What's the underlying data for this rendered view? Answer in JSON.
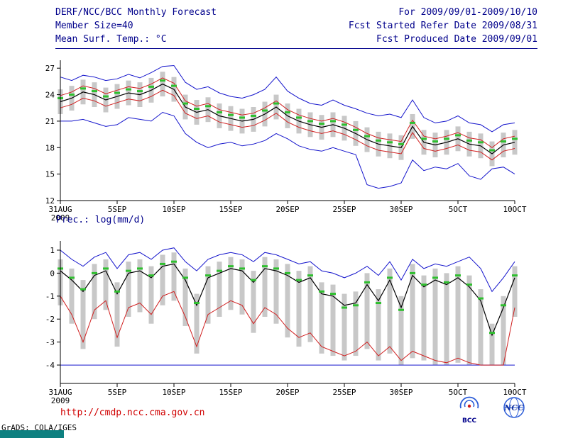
{
  "header": {
    "title": "DERF/NCC/BCC Monthly Forecast",
    "member_size": "Member Size=40",
    "variable_label": "Mean Surf. Temp.: °C",
    "valid_range": "For 2009/09/01-2009/10/10",
    "refer_date": "Fcst Started Refer Date 2009/08/31",
    "produced_date": "Fcst Produced Date 2009/09/01"
  },
  "footer": {
    "url": "http://cmdp.ncc.cma.gov.cn",
    "credit": "GrADS: COLA/IGES",
    "logo_bcc": "BCC",
    "logo_ncc": "NCC"
  },
  "colors": {
    "header_navy": "#00008b",
    "line_blue": "#1414cc",
    "line_red": "#d02020",
    "line_black": "#000000",
    "dash_green": "#2fbf2f",
    "bar_gray": "#c8c8c8",
    "url_red": "#d00000",
    "teal_strip": "#0e8080"
  },
  "chart_data": [
    {
      "type": "line",
      "title": "Mean Surf. Temp.: °C",
      "ylabel": "°C",
      "ylim": [
        12,
        27.9
      ],
      "yticks": [
        12,
        15,
        18,
        21,
        24,
        27
      ],
      "x_tick_days": [
        0,
        5,
        10,
        15,
        20,
        25,
        30,
        35,
        40
      ],
      "x_tick_labels": [
        "31AUG",
        "5SEP",
        "10SEP",
        "15SEP",
        "20SEP",
        "25SEP",
        "30SEP",
        "5OCT",
        "10OCT"
      ],
      "x_sub_label": "2009",
      "grid": false,
      "legend": "none",
      "series": [
        {
          "name": "ensemble-max",
          "color": "#1414cc",
          "width": 1,
          "values": [
            26.0,
            25.6,
            26.2,
            26.0,
            25.6,
            25.8,
            26.3,
            25.9,
            26.5,
            27.2,
            27.3,
            25.4,
            24.6,
            24.9,
            24.2,
            23.8,
            23.6,
            24.0,
            24.6,
            26.0,
            24.4,
            23.6,
            23.0,
            22.8,
            23.4,
            22.8,
            22.4,
            21.9,
            21.6,
            21.8,
            21.4,
            23.4,
            21.4,
            20.8,
            21.0,
            21.6,
            20.8,
            20.6,
            19.8,
            20.6,
            20.8
          ]
        },
        {
          "name": "ensemble-min",
          "color": "#1414cc",
          "width": 1,
          "values": [
            21.0,
            21.0,
            21.2,
            20.8,
            20.4,
            20.6,
            21.4,
            21.2,
            21.0,
            22.0,
            21.6,
            19.6,
            18.6,
            18.0,
            18.4,
            18.6,
            18.2,
            18.4,
            18.8,
            19.6,
            19.0,
            18.2,
            17.8,
            17.6,
            18.0,
            17.6,
            17.2,
            13.8,
            13.4,
            13.6,
            14.0,
            16.6,
            15.4,
            15.8,
            15.6,
            16.2,
            14.8,
            14.4,
            15.6,
            15.8,
            15.0
          ]
        },
        {
          "name": "mean-plus-std",
          "color": "#d02020",
          "width": 1,
          "values": [
            23.9,
            24.3,
            25.0,
            24.7,
            24.1,
            24.5,
            24.9,
            24.7,
            25.2,
            25.9,
            25.3,
            23.3,
            22.7,
            23.0,
            22.3,
            22.0,
            21.7,
            21.9,
            22.5,
            23.3,
            22.3,
            21.7,
            21.3,
            21.0,
            21.3,
            20.9,
            20.3,
            19.6,
            19.1,
            18.9,
            18.7,
            21.1,
            19.3,
            19.0,
            19.3,
            19.7,
            19.1,
            18.9,
            18.0,
            19.0,
            19.3
          ]
        },
        {
          "name": "mean-minus-std",
          "color": "#d02020",
          "width": 1,
          "values": [
            22.5,
            22.9,
            23.6,
            23.3,
            22.7,
            23.1,
            23.5,
            23.3,
            23.8,
            24.5,
            23.9,
            21.9,
            21.3,
            21.6,
            20.9,
            20.6,
            20.3,
            20.5,
            21.1,
            21.9,
            20.9,
            20.3,
            19.9,
            19.6,
            19.9,
            19.5,
            18.9,
            18.2,
            17.7,
            17.5,
            17.3,
            19.7,
            17.9,
            17.6,
            17.9,
            18.3,
            17.7,
            17.5,
            16.6,
            17.6,
            17.9
          ]
        },
        {
          "name": "ensemble-mean",
          "color": "#000000",
          "width": 1.2,
          "values": [
            23.2,
            23.6,
            24.3,
            24.0,
            23.4,
            23.8,
            24.2,
            24.0,
            24.5,
            25.2,
            24.6,
            22.6,
            22.0,
            22.3,
            21.6,
            21.3,
            21.0,
            21.2,
            21.8,
            22.6,
            21.6,
            21.0,
            20.6,
            20.3,
            20.6,
            20.2,
            19.6,
            18.9,
            18.4,
            18.2,
            18.0,
            20.4,
            18.6,
            18.3,
            18.6,
            19.0,
            18.4,
            18.2,
            17.3,
            18.3,
            18.6
          ]
        }
      ],
      "dashes": {
        "name": "ensemble-median",
        "color": "#2fbf2f",
        "values": [
          23.6,
          24.0,
          24.7,
          24.4,
          23.8,
          24.2,
          24.6,
          24.4,
          24.9,
          25.6,
          25.0,
          23.0,
          22.4,
          22.7,
          22.0,
          21.7,
          21.4,
          21.6,
          22.2,
          23.0,
          22.0,
          21.4,
          21.0,
          20.7,
          21.0,
          20.6,
          20.0,
          19.3,
          18.8,
          18.6,
          18.4,
          20.8,
          19.0,
          18.7,
          19.0,
          19.4,
          18.8,
          18.6,
          17.7,
          18.7,
          19.0
        ]
      },
      "bars": {
        "color": "#c8c8c8",
        "low": [
          21.8,
          22.2,
          22.9,
          22.6,
          22.0,
          22.4,
          22.8,
          22.6,
          23.1,
          23.8,
          23.2,
          21.2,
          20.6,
          20.9,
          20.2,
          19.9,
          19.6,
          19.8,
          20.4,
          21.2,
          20.2,
          19.6,
          19.2,
          18.9,
          19.2,
          18.8,
          18.2,
          17.5,
          17.0,
          16.8,
          16.6,
          19.0,
          17.2,
          16.9,
          17.2,
          17.6,
          17.0,
          16.8,
          15.9,
          16.9,
          17.2
        ],
        "high": [
          24.6,
          25.0,
          25.7,
          25.4,
          24.8,
          25.2,
          25.6,
          25.4,
          25.9,
          26.6,
          26.0,
          24.0,
          23.4,
          23.7,
          23.0,
          22.7,
          22.4,
          22.6,
          23.2,
          24.0,
          23.0,
          22.4,
          22.0,
          21.7,
          22.0,
          21.6,
          21.0,
          20.3,
          19.8,
          19.6,
          19.4,
          21.8,
          20.0,
          19.7,
          20.0,
          20.4,
          19.8,
          19.6,
          18.7,
          19.7,
          20.0
        ]
      }
    },
    {
      "type": "line",
      "title": "Prec.: log(mm/d)",
      "ylabel": "log(mm/d)",
      "ylim": [
        -4.8,
        1.4
      ],
      "yticks": [
        1,
        0,
        -1,
        -2,
        -3,
        -4
      ],
      "x_tick_days": [
        0,
        5,
        10,
        15,
        20,
        25,
        30,
        35,
        40
      ],
      "x_tick_labels": [
        "31AUG",
        "5SEP",
        "10SEP",
        "15SEP",
        "20SEP",
        "25SEP",
        "30SEP",
        "5OCT",
        "10OCT"
      ],
      "x_sub_label": "2009",
      "grid": false,
      "legend": "none",
      "series": [
        {
          "name": "ensemble-max",
          "color": "#1414cc",
          "width": 1,
          "values": [
            1.0,
            0.6,
            0.3,
            0.7,
            0.9,
            0.2,
            0.8,
            0.9,
            0.6,
            1.0,
            1.1,
            0.5,
            0.1,
            0.6,
            0.8,
            0.9,
            0.8,
            0.5,
            0.9,
            0.8,
            0.6,
            0.4,
            0.5,
            0.1,
            0.0,
            -0.2,
            0.0,
            0.3,
            -0.1,
            0.5,
            -0.3,
            0.6,
            0.2,
            0.4,
            0.3,
            0.5,
            0.7,
            0.2,
            -0.8,
            -0.2,
            0.5
          ]
        },
        {
          "name": "ensemble-min",
          "color": "#1414cc",
          "width": 1,
          "values": [
            -4.0,
            -4.0,
            -4.0,
            -4.0,
            -4.0,
            -4.0,
            -4.0,
            -4.0,
            -4.0,
            -4.0,
            -4.0,
            -4.0,
            -4.0,
            -4.0,
            -4.0,
            -4.0,
            -4.0,
            -4.0,
            -4.0,
            -4.0,
            -4.0,
            -4.0,
            -4.0,
            -4.0,
            -4.0,
            -4.0,
            -4.0,
            -4.0,
            -4.0,
            -4.0,
            -4.0,
            -4.0,
            -4.0,
            -4.0,
            -4.0,
            -4.0,
            -4.0,
            -4.0,
            -4.0,
            -4.0,
            -4.0
          ]
        },
        {
          "name": "mean-minus-std",
          "color": "#d02020",
          "width": 1,
          "values": [
            -1.0,
            -1.8,
            -3.0,
            -1.6,
            -1.2,
            -2.8,
            -1.5,
            -1.3,
            -1.8,
            -1.0,
            -0.8,
            -1.9,
            -3.2,
            -1.8,
            -1.5,
            -1.2,
            -1.4,
            -2.2,
            -1.5,
            -1.8,
            -2.4,
            -2.8,
            -2.6,
            -3.2,
            -3.4,
            -3.6,
            -3.4,
            -3.0,
            -3.6,
            -3.2,
            -3.8,
            -3.4,
            -3.6,
            -3.8,
            -3.9,
            -3.7,
            -3.9,
            -4.0,
            -4.0,
            -4.0,
            -1.5
          ]
        },
        {
          "name": "ensemble-mean",
          "color": "#000000",
          "width": 1.2,
          "values": [
            0.1,
            -0.3,
            -0.8,
            -0.1,
            0.1,
            -0.9,
            0.0,
            0.1,
            -0.2,
            0.3,
            0.4,
            -0.3,
            -1.4,
            -0.2,
            0.0,
            0.2,
            0.1,
            -0.4,
            0.2,
            0.1,
            -0.1,
            -0.4,
            -0.2,
            -0.9,
            -1.0,
            -1.4,
            -1.3,
            -0.5,
            -1.2,
            -0.3,
            -1.5,
            -0.1,
            -0.6,
            -0.3,
            -0.5,
            -0.2,
            -0.6,
            -1.2,
            -2.7,
            -1.5,
            -0.2
          ]
        }
      ],
      "dashes": {
        "name": "ensemble-median",
        "color": "#2fbf2f",
        "values": [
          0.2,
          -0.2,
          -0.7,
          0.0,
          0.2,
          -0.8,
          0.1,
          0.2,
          -0.1,
          0.4,
          0.5,
          -0.2,
          -1.3,
          -0.1,
          0.1,
          0.3,
          0.2,
          -0.3,
          0.3,
          0.2,
          0.0,
          -0.3,
          -0.1,
          -0.8,
          -0.9,
          -1.5,
          -1.4,
          -0.4,
          -1.3,
          -0.2,
          -1.6,
          0.0,
          -0.5,
          -0.2,
          -0.4,
          -0.1,
          -0.5,
          -1.1,
          -2.6,
          -1.4,
          -0.1
        ]
      },
      "bars": {
        "color": "#c8c8c8",
        "low": [
          -1.4,
          -2.2,
          -3.3,
          -2.0,
          -1.6,
          -3.2,
          -1.9,
          -1.7,
          -2.2,
          -1.4,
          -1.2,
          -2.3,
          -3.5,
          -2.2,
          -1.9,
          -1.6,
          -1.8,
          -2.6,
          -1.9,
          -2.2,
          -2.8,
          -3.2,
          -3.0,
          -3.5,
          -3.6,
          -3.8,
          -3.6,
          -3.3,
          -3.8,
          -3.5,
          -4.0,
          -3.7,
          -3.8,
          -4.0,
          -4.0,
          -3.9,
          -4.0,
          -4.0,
          -4.0,
          -4.0,
          -1.9
        ],
        "high": [
          0.6,
          0.2,
          -0.3,
          0.4,
          0.6,
          -0.4,
          0.5,
          0.6,
          0.3,
          0.8,
          0.9,
          0.2,
          -0.9,
          0.3,
          0.5,
          0.7,
          0.6,
          0.1,
          0.7,
          0.6,
          0.4,
          0.1,
          0.3,
          -0.4,
          -0.5,
          -0.9,
          -0.8,
          0.0,
          -0.7,
          0.2,
          -1.0,
          0.4,
          -0.1,
          0.2,
          0.0,
          0.3,
          -0.1,
          -0.7,
          -2.2,
          -1.0,
          0.3
        ]
      }
    }
  ]
}
